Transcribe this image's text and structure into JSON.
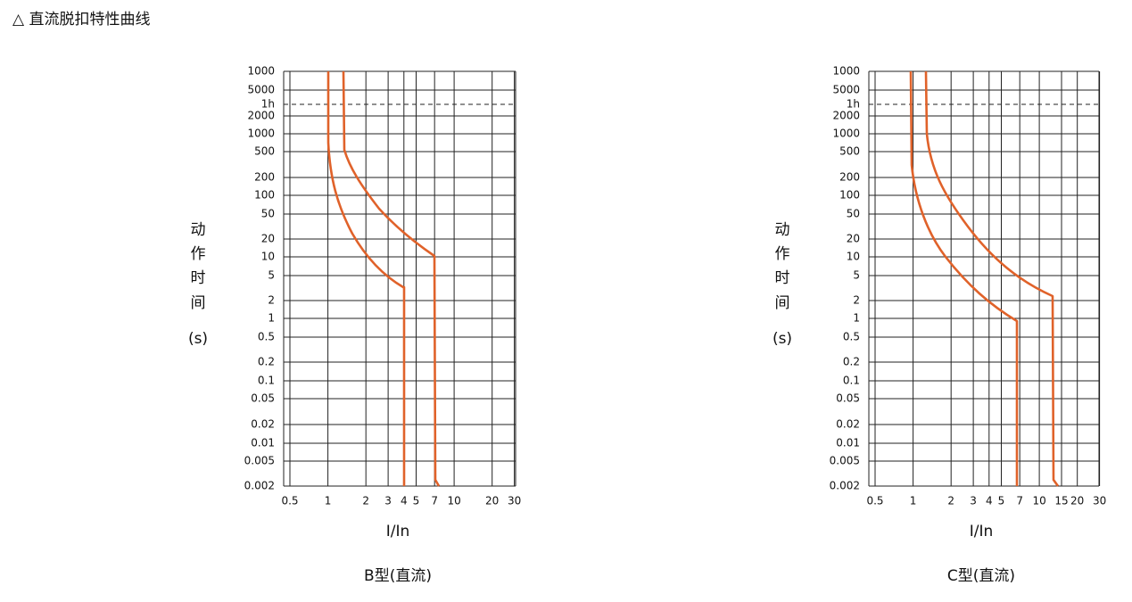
{
  "header": {
    "title": "△ 直流脱扣特性曲线"
  },
  "charts": [
    {
      "caption": "B型(直流)",
      "x_label": "I/In",
      "y_label": [
        "动",
        "作",
        "时",
        "间",
        "(s)"
      ],
      "x_scale": "log",
      "xticks": [
        0.5,
        1,
        2,
        3,
        4,
        5,
        7,
        10,
        20,
        30
      ],
      "yticks": [
        "1000",
        "5000",
        "1h",
        "2000",
        "1000",
        "500",
        "200",
        "100",
        "50",
        "20",
        "10",
        "5",
        "2",
        "1",
        "0.5",
        "0.2",
        "0.1",
        "0.05",
        "0.02",
        "0.01",
        "0.005",
        "0.002"
      ]
    },
    {
      "caption": "C型(直流)",
      "x_label": "I/In",
      "y_label": [
        "动",
        "作",
        "时",
        "间",
        "(s)"
      ],
      "x_scale": "log",
      "xticks": [
        0.5,
        1,
        2,
        3,
        4,
        5,
        7,
        10,
        15,
        20,
        30
      ],
      "yticks": [
        "1000",
        "5000",
        "1h",
        "2000",
        "1000",
        "500",
        "200",
        "100",
        "50",
        "20",
        "10",
        "5",
        "2",
        "1",
        "0.5",
        "0.2",
        "0.1",
        "0.05",
        "0.02",
        "0.01",
        "0.005",
        "0.002"
      ]
    }
  ]
}
